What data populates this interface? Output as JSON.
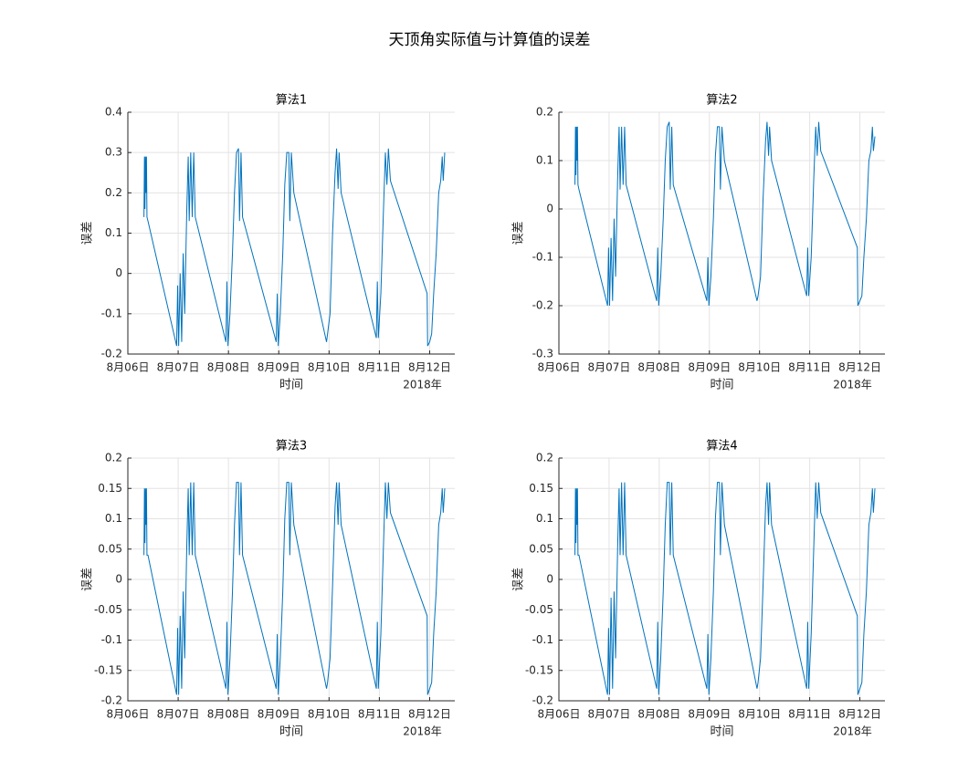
{
  "title": "天顶角实际值与计算值的误差",
  "chart_data": [
    {
      "type": "line",
      "title": "算法1",
      "xlabel": "时间",
      "xlabel_secondary": "2018年",
      "ylabel": "误差",
      "color": "#0072bd",
      "grid": true,
      "xlim": [
        0,
        6.5
      ],
      "xticks": [
        {
          "value": 0,
          "label": "8月06日"
        },
        {
          "value": 1,
          "label": "8月07日"
        },
        {
          "value": 2,
          "label": "8月08日"
        },
        {
          "value": 3,
          "label": "8月09日"
        },
        {
          "value": 4,
          "label": "8月10日"
        },
        {
          "value": 5,
          "label": "8月11日"
        },
        {
          "value": 6,
          "label": "8月12日"
        }
      ],
      "ylim": [
        -0.2,
        0.4
      ],
      "yticks": [
        -0.2,
        -0.1,
        0,
        0.1,
        0.2,
        0.3,
        0.4
      ],
      "x": [
        0.32,
        0.33,
        0.34,
        0.35,
        0.36,
        0.37,
        0.38,
        0.4,
        0.97,
        0.99,
        1.01,
        1.04,
        1.07,
        1.1,
        1.13,
        1.17,
        1.2,
        1.22,
        1.25,
        1.28,
        1.31,
        1.34,
        1.95,
        1.97,
        1.99,
        2.03,
        2.08,
        2.12,
        2.16,
        2.2,
        2.22,
        2.25,
        2.28,
        2.95,
        2.97,
        2.99,
        3.03,
        3.08,
        3.12,
        3.16,
        3.2,
        3.22,
        3.25,
        3.3,
        3.95,
        3.97,
        4.02,
        4.07,
        4.12,
        4.15,
        4.18,
        4.2,
        4.24,
        4.94,
        4.96,
        4.98,
        5.03,
        5.08,
        5.12,
        5.15,
        5.18,
        5.22,
        5.95,
        5.96,
        6.0,
        6.04,
        6.08,
        6.13,
        6.18,
        6.22,
        6.25,
        6.27,
        6.3
      ],
      "values": [
        0.14,
        0.29,
        0.16,
        0.29,
        0.2,
        0.29,
        0.14,
        0.13,
        -0.18,
        -0.03,
        -0.18,
        0,
        -0.17,
        0.05,
        -0.1,
        0.15,
        0.29,
        0.13,
        0.3,
        0.14,
        0.3,
        0.14,
        -0.17,
        -0.02,
        -0.18,
        -0.1,
        0.05,
        0.2,
        0.3,
        0.31,
        0.13,
        0.3,
        0.14,
        -0.17,
        -0.05,
        -0.18,
        -0.1,
        0.05,
        0.22,
        0.3,
        0.3,
        0.13,
        0.3,
        0.2,
        -0.17,
        -0.15,
        -0.1,
        0.1,
        0.25,
        0.31,
        0.21,
        0.3,
        0.2,
        -0.16,
        -0.02,
        -0.16,
        -0.05,
        0.15,
        0.3,
        0.22,
        0.31,
        0.23,
        -0.05,
        -0.18,
        -0.17,
        -0.15,
        -0.05,
        0.05,
        0.2,
        0.23,
        0.29,
        0.23,
        0.3
      ]
    },
    {
      "type": "line",
      "title": "算法2",
      "xlabel": "时间",
      "xlabel_secondary": "2018年",
      "ylabel": "误差",
      "color": "#0072bd",
      "grid": true,
      "xlim": [
        0,
        6.5
      ],
      "xticks": [
        {
          "value": 0,
          "label": "8月06日"
        },
        {
          "value": 1,
          "label": "8月07日"
        },
        {
          "value": 2,
          "label": "8月08日"
        },
        {
          "value": 3,
          "label": "8月09日"
        },
        {
          "value": 4,
          "label": "8月10日"
        },
        {
          "value": 5,
          "label": "8月11日"
        },
        {
          "value": 6,
          "label": "8月12日"
        }
      ],
      "ylim": [
        -0.3,
        0.2
      ],
      "yticks": [
        -0.3,
        -0.2,
        -0.1,
        0,
        0.1,
        0.2
      ],
      "x": [
        0.32,
        0.33,
        0.34,
        0.35,
        0.36,
        0.37,
        0.38,
        0.4,
        0.97,
        0.99,
        1.01,
        1.04,
        1.07,
        1.1,
        1.13,
        1.17,
        1.2,
        1.22,
        1.25,
        1.28,
        1.31,
        1.34,
        1.95,
        1.97,
        1.99,
        2.03,
        2.08,
        2.12,
        2.16,
        2.2,
        2.22,
        2.25,
        2.28,
        2.95,
        2.97,
        2.99,
        3.03,
        3.08,
        3.12,
        3.16,
        3.2,
        3.22,
        3.25,
        3.3,
        3.95,
        3.97,
        4.02,
        4.07,
        4.12,
        4.15,
        4.18,
        4.2,
        4.24,
        4.94,
        4.96,
        4.98,
        5.03,
        5.08,
        5.12,
        5.15,
        5.18,
        5.22,
        5.95,
        5.96,
        6.0,
        6.04,
        6.08,
        6.13,
        6.18,
        6.22,
        6.25,
        6.27,
        6.3
      ],
      "values": [
        0.05,
        0.17,
        0.07,
        0.17,
        0.1,
        0.17,
        0.05,
        0.04,
        -0.2,
        -0.08,
        -0.2,
        -0.06,
        -0.19,
        -0.02,
        -0.14,
        0.06,
        0.17,
        0.04,
        0.17,
        0.05,
        0.17,
        0.05,
        -0.19,
        -0.08,
        -0.2,
        -0.14,
        -0.02,
        0.1,
        0.17,
        0.18,
        0.04,
        0.17,
        0.05,
        -0.19,
        -0.1,
        -0.2,
        -0.14,
        -0.02,
        0.11,
        0.17,
        0.17,
        0.04,
        0.17,
        0.1,
        -0.19,
        -0.18,
        -0.14,
        0.02,
        0.14,
        0.18,
        0.11,
        0.17,
        0.1,
        -0.18,
        -0.08,
        -0.18,
        -0.1,
        0.06,
        0.17,
        0.11,
        0.18,
        0.12,
        -0.08,
        -0.2,
        -0.19,
        -0.18,
        -0.1,
        -0.02,
        0.1,
        0.12,
        0.17,
        0.12,
        0.15
      ]
    },
    {
      "type": "line",
      "title": "算法3",
      "xlabel": "时间",
      "xlabel_secondary": "2018年",
      "ylabel": "误差",
      "color": "#0072bd",
      "grid": true,
      "xlim": [
        0,
        6.5
      ],
      "xticks": [
        {
          "value": 0,
          "label": "8月06日"
        },
        {
          "value": 1,
          "label": "8月07日"
        },
        {
          "value": 2,
          "label": "8月08日"
        },
        {
          "value": 3,
          "label": "8月09日"
        },
        {
          "value": 4,
          "label": "8月10日"
        },
        {
          "value": 5,
          "label": "8月11日"
        },
        {
          "value": 6,
          "label": "8月12日"
        }
      ],
      "ylim": [
        -0.2,
        0.2
      ],
      "yticks": [
        -0.2,
        -0.15,
        -0.1,
        -0.05,
        0,
        0.05,
        0.1,
        0.15,
        0.2
      ],
      "x": [
        0.32,
        0.33,
        0.34,
        0.35,
        0.36,
        0.37,
        0.38,
        0.4,
        0.97,
        0.99,
        1.01,
        1.04,
        1.07,
        1.1,
        1.13,
        1.17,
        1.2,
        1.22,
        1.25,
        1.28,
        1.31,
        1.34,
        1.95,
        1.97,
        1.99,
        2.03,
        2.08,
        2.12,
        2.16,
        2.2,
        2.22,
        2.25,
        2.28,
        2.95,
        2.97,
        2.99,
        3.03,
        3.08,
        3.12,
        3.16,
        3.2,
        3.22,
        3.25,
        3.3,
        3.95,
        3.97,
        4.02,
        4.07,
        4.12,
        4.15,
        4.18,
        4.2,
        4.24,
        4.94,
        4.96,
        4.98,
        5.03,
        5.08,
        5.12,
        5.15,
        5.18,
        5.22,
        5.95,
        5.96,
        6.0,
        6.04,
        6.08,
        6.13,
        6.18,
        6.22,
        6.25,
        6.27,
        6.3
      ],
      "values": [
        0.04,
        0.15,
        0.06,
        0.15,
        0.09,
        0.15,
        0.04,
        0.04,
        -0.19,
        -0.08,
        -0.19,
        -0.06,
        -0.18,
        -0.02,
        -0.13,
        0.05,
        0.15,
        0.04,
        0.16,
        0.04,
        0.16,
        0.04,
        -0.18,
        -0.07,
        -0.19,
        -0.13,
        -0.02,
        0.09,
        0.16,
        0.16,
        0.04,
        0.16,
        0.04,
        -0.18,
        -0.09,
        -0.19,
        -0.13,
        -0.02,
        0.1,
        0.16,
        0.16,
        0.04,
        0.16,
        0.09,
        -0.18,
        -0.17,
        -0.13,
        -0.01,
        0.12,
        0.16,
        0.09,
        0.16,
        0.09,
        -0.18,
        -0.07,
        -0.18,
        -0.09,
        0.05,
        0.16,
        0.1,
        0.16,
        0.11,
        -0.06,
        -0.19,
        -0.18,
        -0.17,
        -0.09,
        -0.02,
        0.09,
        0.11,
        0.15,
        0.11,
        0.15
      ]
    },
    {
      "type": "line",
      "title": "算法4",
      "xlabel": "时间",
      "xlabel_secondary": "2018年",
      "ylabel": "误差",
      "color": "#0072bd",
      "grid": true,
      "xlim": [
        0,
        6.5
      ],
      "xticks": [
        {
          "value": 0,
          "label": "8月06日"
        },
        {
          "value": 1,
          "label": "8月07日"
        },
        {
          "value": 2,
          "label": "8月08日"
        },
        {
          "value": 3,
          "label": "8月09日"
        },
        {
          "value": 4,
          "label": "8月10日"
        },
        {
          "value": 5,
          "label": "8月11日"
        },
        {
          "value": 6,
          "label": "8月12日"
        }
      ],
      "ylim": [
        -0.2,
        0.2
      ],
      "yticks": [
        -0.2,
        -0.15,
        -0.1,
        -0.05,
        0,
        0.05,
        0.1,
        0.15,
        0.2
      ],
      "x": [
        0.32,
        0.33,
        0.34,
        0.35,
        0.36,
        0.37,
        0.38,
        0.4,
        0.97,
        0.99,
        1.01,
        1.04,
        1.07,
        1.1,
        1.13,
        1.17,
        1.2,
        1.22,
        1.25,
        1.28,
        1.31,
        1.34,
        1.95,
        1.97,
        1.99,
        2.03,
        2.08,
        2.12,
        2.16,
        2.2,
        2.22,
        2.25,
        2.28,
        2.95,
        2.97,
        2.99,
        3.03,
        3.08,
        3.12,
        3.16,
        3.2,
        3.22,
        3.25,
        3.3,
        3.95,
        3.97,
        4.02,
        4.07,
        4.12,
        4.15,
        4.18,
        4.2,
        4.24,
        4.94,
        4.96,
        4.98,
        5.03,
        5.08,
        5.12,
        5.15,
        5.18,
        5.22,
        5.95,
        5.96,
        6.0,
        6.04,
        6.08,
        6.13,
        6.18,
        6.22,
        6.25,
        6.27,
        6.3
      ],
      "values": [
        0.04,
        0.15,
        0.06,
        0.15,
        0.09,
        0.15,
        0.04,
        0.04,
        -0.19,
        -0.08,
        -0.19,
        -0.03,
        -0.18,
        -0.02,
        -0.13,
        0.05,
        0.15,
        0.04,
        0.16,
        0.04,
        0.16,
        0.04,
        -0.18,
        -0.07,
        -0.19,
        -0.13,
        -0.02,
        0.09,
        0.16,
        0.16,
        0.04,
        0.16,
        0.04,
        -0.18,
        -0.09,
        -0.19,
        -0.13,
        -0.02,
        0.1,
        0.16,
        0.16,
        0.04,
        0.16,
        0.09,
        -0.18,
        -0.17,
        -0.13,
        -0.01,
        0.12,
        0.16,
        0.09,
        0.16,
        0.09,
        -0.18,
        -0.07,
        -0.18,
        -0.09,
        0.05,
        0.16,
        0.1,
        0.16,
        0.11,
        -0.06,
        -0.19,
        -0.18,
        -0.17,
        -0.09,
        -0.02,
        0.09,
        0.11,
        0.15,
        0.11,
        0.15
      ]
    }
  ]
}
